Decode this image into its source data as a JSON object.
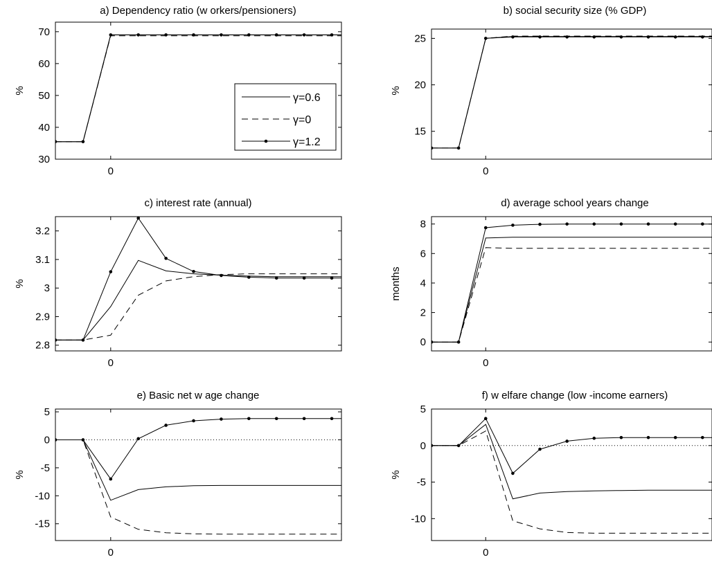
{
  "chart_data": [
    {
      "type": "line",
      "title": "a) Dependency ratio (w orkers/pensioners)",
      "ylabel": "%",
      "x": [
        -2,
        -1,
        0,
        1,
        2,
        3,
        4,
        5,
        6,
        7,
        8,
        9
      ],
      "xticks": [
        0
      ],
      "xlim": [
        -2,
        8.35
      ],
      "ylim": [
        30,
        73
      ],
      "yticks": [
        30,
        40,
        50,
        60,
        70
      ],
      "legend": {
        "position": "right",
        "entries": [
          "γ=0.6",
          "γ=0",
          "γ=1.2"
        ]
      },
      "zero_line": false,
      "series": [
        {
          "name": "γ=0.6",
          "style": "solid",
          "values": [
            35.5,
            35.5,
            69,
            69,
            69,
            69,
            69,
            69,
            69,
            69,
            69,
            69
          ]
        },
        {
          "name": "γ=0",
          "style": "dashed",
          "values": [
            35.5,
            35.5,
            68.7,
            68.7,
            68.7,
            68.7,
            68.7,
            68.7,
            68.7,
            68.7,
            68.7,
            68.7
          ]
        },
        {
          "name": "γ=1.2",
          "style": "dotted-marker",
          "values": [
            35.5,
            35.5,
            69,
            69,
            69,
            69,
            69,
            69,
            69,
            69,
            69,
            69
          ]
        }
      ]
    },
    {
      "type": "line",
      "title": "b) social security size (% GDP)",
      "ylabel": "%",
      "x": [
        -2,
        -1,
        0,
        1,
        2,
        3,
        4,
        5,
        6,
        7,
        8,
        9
      ],
      "xticks": [
        0
      ],
      "xlim": [
        -2,
        8.35
      ],
      "ylim": [
        12,
        26
      ],
      "yticks": [
        15,
        20,
        25
      ],
      "zero_line": false,
      "series": [
        {
          "name": "γ=0.6",
          "style": "solid",
          "values": [
            13.2,
            13.2,
            25.0,
            25.2,
            25.2,
            25.2,
            25.2,
            25.2,
            25.2,
            25.2,
            25.2,
            25.2
          ]
        },
        {
          "name": "γ=0",
          "style": "dashed",
          "values": [
            13.2,
            13.2,
            25.0,
            25.25,
            25.25,
            25.25,
            25.25,
            25.25,
            25.25,
            25.25,
            25.25,
            25.25
          ]
        },
        {
          "name": "γ=1.2",
          "style": "dotted-marker",
          "values": [
            13.2,
            13.2,
            25.0,
            25.15,
            25.15,
            25.15,
            25.15,
            25.15,
            25.15,
            25.15,
            25.15,
            25.15
          ]
        }
      ]
    },
    {
      "type": "line",
      "title": "c) interest rate (annual)",
      "ylabel": "%",
      "x": [
        -2,
        -1,
        0,
        1,
        2,
        3,
        4,
        5,
        6,
        7,
        8,
        9
      ],
      "xticks": [
        0
      ],
      "xlim": [
        -2,
        8.35
      ],
      "ylim": [
        2.78,
        3.25
      ],
      "yticks": [
        2.8,
        2.9,
        3,
        3.1,
        3.2
      ],
      "ytick_labels": [
        "2.8",
        "2.9",
        "3",
        "3.1",
        "3.2"
      ],
      "zero_line": false,
      "series": [
        {
          "name": "γ=0.6",
          "style": "solid",
          "values": [
            2.818,
            2.818,
            2.935,
            3.097,
            3.06,
            3.05,
            3.045,
            3.042,
            3.04,
            3.04,
            3.04,
            3.04
          ]
        },
        {
          "name": "γ=0",
          "style": "dashed",
          "values": [
            2.818,
            2.818,
            2.835,
            2.975,
            3.025,
            3.04,
            3.047,
            3.05,
            3.05,
            3.05,
            3.05,
            3.05
          ]
        },
        {
          "name": "γ=1.2",
          "style": "dotted-marker",
          "values": [
            2.818,
            2.818,
            3.057,
            3.245,
            3.104,
            3.058,
            3.044,
            3.038,
            3.035,
            3.035,
            3.035,
            3.035
          ]
        }
      ]
    },
    {
      "type": "line",
      "title": "d) average school years change",
      "ylabel": "months",
      "x": [
        -2,
        -1,
        0,
        1,
        2,
        3,
        4,
        5,
        6,
        7,
        8,
        9
      ],
      "xticks": [
        0
      ],
      "xlim": [
        -2,
        8.35
      ],
      "ylim": [
        -0.6,
        8.5
      ],
      "yticks": [
        0,
        2,
        4,
        6,
        8
      ],
      "zero_line": false,
      "series": [
        {
          "name": "γ=0.6",
          "style": "solid",
          "values": [
            0,
            0,
            7.05,
            7.1,
            7.1,
            7.1,
            7.1,
            7.1,
            7.1,
            7.1,
            7.1,
            7.1
          ]
        },
        {
          "name": "γ=0",
          "style": "dashed",
          "values": [
            0,
            0,
            6.4,
            6.35,
            6.35,
            6.35,
            6.35,
            6.35,
            6.35,
            6.35,
            6.35,
            6.35
          ]
        },
        {
          "name": "γ=1.2",
          "style": "dotted-marker",
          "values": [
            0,
            0,
            7.75,
            7.92,
            7.98,
            8.0,
            8.0,
            8.0,
            8.0,
            8.0,
            8.0,
            8.0
          ]
        }
      ]
    },
    {
      "type": "line",
      "title": "e) Basic net w age change",
      "ylabel": "%",
      "x": [
        -2,
        -1,
        0,
        1,
        2,
        3,
        4,
        5,
        6,
        7,
        8,
        9
      ],
      "xticks": [
        0
      ],
      "xlim": [
        -2,
        8.35
      ],
      "ylim": [
        -18,
        5.5
      ],
      "yticks": [
        -15,
        -10,
        -5,
        0,
        5
      ],
      "zero_line": true,
      "series": [
        {
          "name": "γ=0.6",
          "style": "solid",
          "values": [
            0,
            0,
            -10.8,
            -8.9,
            -8.4,
            -8.2,
            -8.15,
            -8.15,
            -8.15,
            -8.15,
            -8.15,
            -8.15
          ]
        },
        {
          "name": "γ=0",
          "style": "dashed",
          "values": [
            0,
            0,
            -13.8,
            -16.0,
            -16.6,
            -16.8,
            -16.85,
            -16.85,
            -16.85,
            -16.85,
            -16.85,
            -16.85
          ]
        },
        {
          "name": "γ=1.2",
          "style": "dotted-marker",
          "values": [
            0,
            0,
            -7.0,
            0.2,
            2.6,
            3.4,
            3.7,
            3.8,
            3.8,
            3.8,
            3.8,
            3.8
          ]
        }
      ]
    },
    {
      "type": "line",
      "title": "f) w elfare change (low -income earners)",
      "ylabel": "%",
      "x": [
        -2,
        -1,
        0,
        1,
        2,
        3,
        4,
        5,
        6,
        7,
        8,
        9
      ],
      "xticks": [
        0
      ],
      "xlim": [
        -2,
        8.35
      ],
      "ylim": [
        -13,
        5
      ],
      "yticks": [
        -10,
        -5,
        0,
        5
      ],
      "zero_line": true,
      "series": [
        {
          "name": "γ=0.6",
          "style": "solid",
          "values": [
            0,
            0,
            2.9,
            -7.3,
            -6.5,
            -6.3,
            -6.2,
            -6.15,
            -6.1,
            -6.1,
            -6.1,
            -6.1
          ]
        },
        {
          "name": "γ=0",
          "style": "dashed",
          "values": [
            0,
            0,
            2.0,
            -10.3,
            -11.4,
            -11.9,
            -12.0,
            -12.0,
            -12.0,
            -12.0,
            -12.0,
            -12.0
          ]
        },
        {
          "name": "γ=1.2",
          "style": "dotted-marker",
          "values": [
            0,
            0,
            3.7,
            -3.8,
            -0.5,
            0.6,
            1.0,
            1.1,
            1.1,
            1.1,
            1.1,
            1.1
          ]
        }
      ]
    }
  ]
}
